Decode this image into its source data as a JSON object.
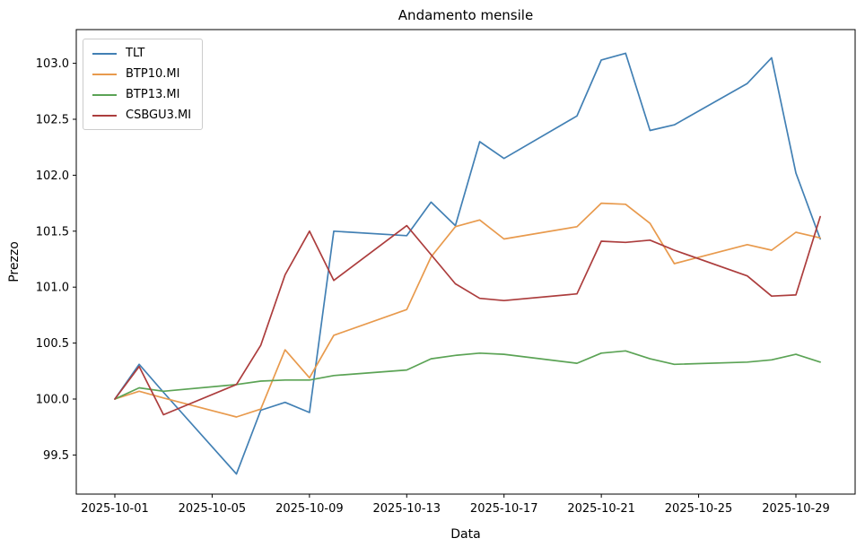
{
  "title": "Andamento mensile",
  "xlabel": "Data",
  "ylabel": "Prezzo",
  "legend": {
    "items": [
      "TLT",
      "BTP10.MI",
      "BTP13.MI",
      "CSBGU3.MI"
    ]
  },
  "chart_data": {
    "type": "line",
    "title": "Andamento mensile",
    "xlabel": "Data",
    "ylabel": "Prezzo",
    "grid": false,
    "legend_position": "upper left",
    "x": [
      "2025-10-01",
      "2025-10-02",
      "2025-10-03",
      "2025-10-06",
      "2025-10-07",
      "2025-10-08",
      "2025-10-09",
      "2025-10-10",
      "2025-10-13",
      "2025-10-14",
      "2025-10-15",
      "2025-10-16",
      "2025-10-17",
      "2025-10-20",
      "2025-10-21",
      "2025-10-22",
      "2025-10-23",
      "2025-10-24",
      "2025-10-27",
      "2025-10-28",
      "2025-10-29",
      "2025-10-30"
    ],
    "series": [
      {
        "name": "TLT",
        "color": "#4280b4",
        "values": [
          100.0,
          100.31,
          100.06,
          99.33,
          99.9,
          99.97,
          99.88,
          101.5,
          101.46,
          101.76,
          101.55,
          102.3,
          102.15,
          102.53,
          103.03,
          103.09,
          102.4,
          102.45,
          102.82,
          103.05,
          102.02,
          101.43
        ]
      },
      {
        "name": "BTP10.MI",
        "color": "#e89a4d",
        "values": [
          100.0,
          100.07,
          100.01,
          99.84,
          99.91,
          100.44,
          100.19,
          100.57,
          100.8,
          101.27,
          101.54,
          101.6,
          101.43,
          101.54,
          101.75,
          101.74,
          101.57,
          101.21,
          101.38,
          101.33,
          101.49,
          101.44
        ]
      },
      {
        "name": "BTP13.MI",
        "color": "#5ba355",
        "values": [
          100.0,
          100.1,
          100.07,
          100.13,
          100.16,
          100.17,
          100.17,
          100.21,
          100.26,
          100.36,
          100.39,
          100.41,
          100.4,
          100.32,
          100.41,
          100.43,
          100.36,
          100.31,
          100.33,
          100.35,
          100.4,
          100.33
        ]
      },
      {
        "name": "CSBGU3.MI",
        "color": "#ac3d3d",
        "values": [
          100.0,
          100.29,
          99.86,
          100.13,
          100.48,
          101.11,
          101.5,
          101.06,
          101.55,
          101.29,
          101.03,
          100.9,
          100.88,
          100.94,
          101.41,
          101.4,
          101.42,
          101.33,
          101.1,
          100.92,
          100.93,
          101.63
        ]
      }
    ],
    "xticks": [
      "2025-10-01",
      "2025-10-05",
      "2025-10-09",
      "2025-10-13",
      "2025-10-17",
      "2025-10-21",
      "2025-10-25",
      "2025-10-29"
    ],
    "ytick_labels": [
      "99.5",
      "100.0",
      "100.5",
      "101.0",
      "101.5",
      "102.0",
      "102.5",
      "103.0"
    ],
    "yticks": [
      99.5,
      100.0,
      100.5,
      101.0,
      101.5,
      102.0,
      102.5,
      103.0
    ],
    "ylim": [
      99.15,
      103.31
    ],
    "axis_color": "#000000"
  }
}
